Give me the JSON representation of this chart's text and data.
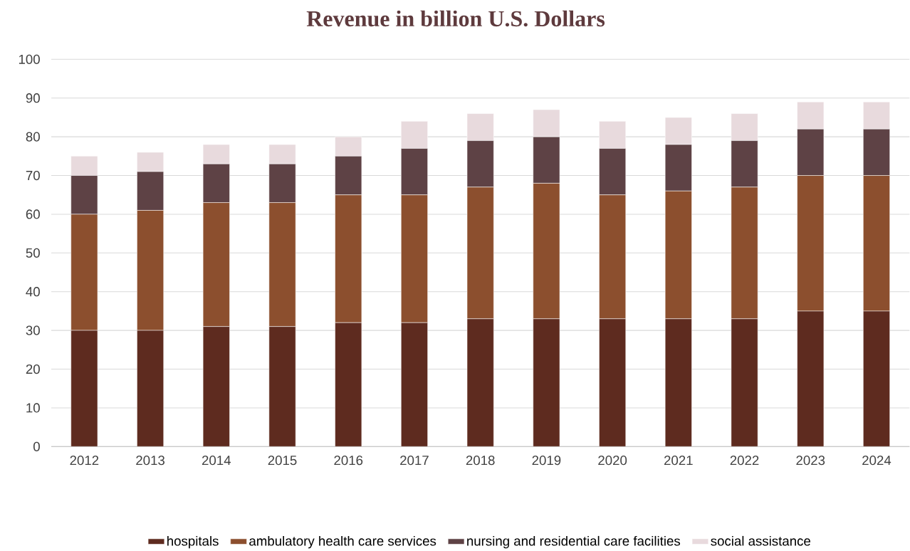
{
  "chart_data": {
    "type": "bar",
    "title": "Revenue in billion U.S. Dollars",
    "stacked": true,
    "grid": "y",
    "legend": "bottom",
    "categories": [
      "2012",
      "2013",
      "2014",
      "2015",
      "2016",
      "2017",
      "2018",
      "2019",
      "2020",
      "2021",
      "2022",
      "2023",
      "2024"
    ],
    "ylim": [
      0,
      100
    ],
    "yticks": [
      0,
      10,
      20,
      30,
      40,
      50,
      60,
      70,
      80,
      90,
      100
    ],
    "series": [
      {
        "name": "hospitals",
        "color": "#5e2b1f",
        "values": [
          30,
          30,
          31,
          31,
          32,
          32,
          33,
          33,
          33,
          33,
          33,
          35,
          35
        ]
      },
      {
        "name": "ambulatory health care services",
        "color": "#8c4f2e",
        "values": [
          30,
          31,
          32,
          32,
          33,
          33,
          34,
          35,
          32,
          33,
          34,
          35,
          35
        ]
      },
      {
        "name": "nursing and residential care facilities",
        "color": "#5e4245",
        "values": [
          10,
          10,
          10,
          10,
          10,
          12,
          12,
          12,
          12,
          12,
          12,
          12,
          12
        ]
      },
      {
        "name": "social assistance",
        "color": "#e8dadd",
        "values": [
          5,
          5,
          5,
          5,
          5,
          7,
          7,
          7,
          7,
          7,
          7,
          7,
          7
        ]
      }
    ]
  }
}
